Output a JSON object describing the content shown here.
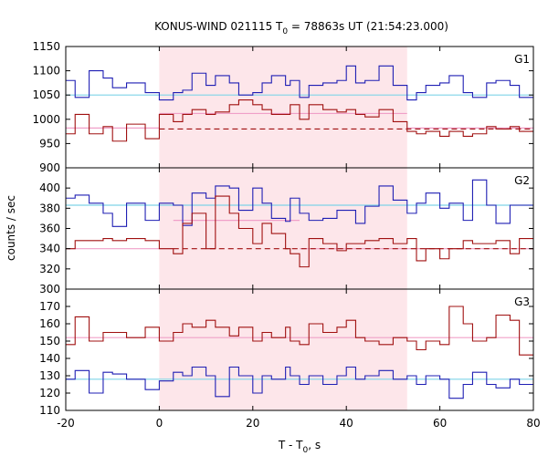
{
  "chart_data": {
    "type": "line",
    "title_main": "KONUS-WIND 021115 T",
    "title_sub": "0",
    "title_rest": " = 78863s UT (21:54:23.000)",
    "xlabel_main": "T - T",
    "xlabel_sub": "0",
    "xlabel_rest": ", s",
    "ylabel": "counts / sec",
    "xlim": [
      -20,
      80
    ],
    "xticks": [
      "-20",
      "0",
      "20",
      "40",
      "60",
      "80"
    ],
    "highlight_interval": [
      0,
      53
    ],
    "colors": {
      "blue": "#1f1fb4",
      "darkred": "#a01010",
      "lightblue": "#7fd4e8",
      "pink": "#f0a0c8",
      "band": "#fde6ea"
    },
    "panels": [
      {
        "label": "G1",
        "ylim": [
          900,
          1150
        ],
        "yticks": [
          "900",
          "950",
          "1000",
          "1050",
          "1100",
          "1150"
        ],
        "bin_edges": [
          -20,
          -18,
          -15,
          -12,
          -10,
          -7,
          -3,
          0,
          3,
          5,
          7,
          10,
          12,
          15,
          17,
          20,
          22,
          24,
          27,
          28,
          30,
          32,
          35,
          38,
          40,
          42,
          44,
          47,
          50,
          53,
          55,
          57,
          60,
          62,
          65,
          67,
          70,
          72,
          75,
          77,
          80
        ],
        "series": [
          {
            "color_key": "blue",
            "values": [
              1080,
              1045,
              1100,
              1085,
              1065,
              1075,
              1055,
              1040,
              1055,
              1060,
              1095,
              1070,
              1090,
              1075,
              1050,
              1055,
              1075,
              1090,
              1070,
              1080,
              1045,
              1070,
              1075,
              1080,
              1110,
              1075,
              1080,
              1110,
              1070,
              1040,
              1055,
              1070,
              1075,
              1090,
              1055,
              1045,
              1075,
              1080,
              1070,
              1045
            ]
          },
          {
            "color_key": "darkred",
            "values": [
              970,
              1010,
              970,
              985,
              955,
              990,
              960,
              1010,
              995,
              1010,
              1020,
              1010,
              1015,
              1030,
              1040,
              1030,
              1020,
              1010,
              1010,
              1030,
              1000,
              1030,
              1020,
              1015,
              1020,
              1010,
              1005,
              1020,
              995,
              975,
              970,
              975,
              965,
              975,
              965,
              970,
              985,
              980,
              985,
              975
            ]
          }
        ],
        "steps": [
          {
            "color_key": "lightblue",
            "x0": -20,
            "x1": 80,
            "y": 1050,
            "dashed": false
          },
          {
            "color_key": "pink",
            "x0": -20,
            "x1": 0,
            "y": 982,
            "dashed": false
          },
          {
            "color_key": "pink",
            "x0": 0,
            "x1": 53,
            "y": 1012,
            "dashed": false
          },
          {
            "color_key": "pink",
            "x0": 53,
            "x1": 80,
            "y": 982,
            "dashed": false
          },
          {
            "color_key": "darkred",
            "x0": 0,
            "x1": 80,
            "y": 980,
            "dashed": true
          }
        ]
      },
      {
        "label": "G2",
        "ylim": [
          300,
          420
        ],
        "yticks": [
          "300",
          "320",
          "340",
          "360",
          "380",
          "400"
        ],
        "bin_edges": [
          -20,
          -18,
          -15,
          -12,
          -10,
          -7,
          -3,
          0,
          3,
          5,
          7,
          10,
          12,
          15,
          17,
          20,
          22,
          24,
          27,
          28,
          30,
          32,
          35,
          38,
          40,
          42,
          44,
          47,
          50,
          53,
          55,
          57,
          60,
          62,
          65,
          67,
          70,
          72,
          75,
          77,
          80
        ],
        "series": [
          {
            "color_key": "blue",
            "values": [
              390,
              393,
              385,
              375,
              362,
              385,
              368,
              385,
              383,
              363,
              395,
              390,
              402,
              400,
              378,
              400,
              385,
              370,
              367,
              390,
              375,
              368,
              370,
              378,
              378,
              365,
              382,
              402,
              388,
              375,
              385,
              395,
              380,
              385,
              368,
              408,
              383,
              365,
              383,
              383
            ]
          },
          {
            "color_key": "darkred",
            "values": [
              340,
              348,
              348,
              350,
              348,
              350,
              348,
              340,
              335,
              365,
              375,
              340,
              392,
              375,
              360,
              345,
              365,
              355,
              340,
              335,
              322,
              350,
              345,
              338,
              345,
              345,
              348,
              350,
              345,
              350,
              328,
              340,
              330,
              340,
              348,
              345,
              345,
              348,
              335,
              350
            ]
          }
        ],
        "steps": [
          {
            "color_key": "lightblue",
            "x0": -20,
            "x1": 80,
            "y": 383,
            "dashed": false
          },
          {
            "color_key": "pink",
            "x0": -20,
            "x1": 3,
            "y": 340,
            "dashed": false
          },
          {
            "color_key": "pink",
            "x0": 3,
            "x1": 30,
            "y": 368,
            "dashed": false
          },
          {
            "color_key": "pink",
            "x0": 30,
            "x1": 80,
            "y": 340,
            "dashed": false
          },
          {
            "color_key": "darkred",
            "x0": 3,
            "x1": 80,
            "y": 340,
            "dashed": true
          }
        ]
      },
      {
        "label": "G3",
        "ylim": [
          110,
          180
        ],
        "yticks": [
          "110",
          "120",
          "130",
          "140",
          "150",
          "160",
          "170"
        ],
        "bin_edges": [
          -20,
          -18,
          -15,
          -12,
          -10,
          -7,
          -3,
          0,
          3,
          5,
          7,
          10,
          12,
          15,
          17,
          20,
          22,
          24,
          27,
          28,
          30,
          32,
          35,
          38,
          40,
          42,
          44,
          47,
          50,
          53,
          55,
          57,
          60,
          62,
          65,
          67,
          70,
          72,
          75,
          77,
          80
        ],
        "series": [
          {
            "color_key": "blue",
            "values": [
              128,
              133,
              120,
              132,
              131,
              128,
              122,
              127,
              132,
              130,
              135,
              130,
              118,
              135,
              130,
              120,
              130,
              128,
              135,
              130,
              125,
              130,
              125,
              130,
              135,
              128,
              130,
              133,
              128,
              130,
              125,
              130,
              128,
              117,
              125,
              132,
              125,
              123,
              128,
              125
            ]
          },
          {
            "color_key": "darkred",
            "values": [
              148,
              164,
              150,
              155,
              155,
              152,
              158,
              150,
              155,
              160,
              158,
              162,
              158,
              153,
              158,
              150,
              155,
              152,
              158,
              150,
              148,
              160,
              155,
              158,
              162,
              152,
              150,
              148,
              152,
              150,
              145,
              150,
              148,
              170,
              160,
              150,
              152,
              165,
              162,
              142
            ]
          }
        ],
        "steps": [
          {
            "color_key": "lightblue",
            "x0": -20,
            "x1": 80,
            "y": 128,
            "dashed": false
          },
          {
            "color_key": "pink",
            "x0": -20,
            "x1": 80,
            "y": 152,
            "dashed": false
          }
        ]
      }
    ]
  }
}
